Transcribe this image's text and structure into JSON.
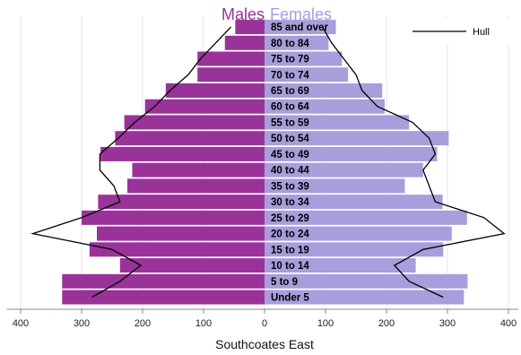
{
  "chart_data": {
    "type": "bar",
    "subtype": "population-pyramid",
    "xlabel": "Southcoates East",
    "xlim": [
      -410,
      400
    ],
    "xticks": [
      -400,
      -300,
      -200,
      -100,
      0,
      100,
      200,
      300,
      400
    ],
    "xtick_labels": [
      "400",
      "300",
      "200",
      "100",
      "0",
      "100",
      "200",
      "300",
      "400"
    ],
    "categories": [
      "Under 5",
      "5 to 9",
      "10 to 14",
      "15 to 19",
      "20 to 24",
      "25 to 29",
      "30 to 34",
      "35 to 39",
      "40 to 44",
      "45 to 49",
      "50 to 54",
      "55 to 59",
      "60 to 64",
      "65 to 69",
      "70 to 74",
      "75 to 79",
      "80 to 84",
      "85 and over"
    ],
    "series": [
      {
        "name": "Males",
        "color": "#993399",
        "values": [
          332,
          332,
          237,
          287,
          275,
          300,
          273,
          225,
          217,
          269,
          245,
          230,
          196,
          162,
          110,
          110,
          65,
          48
        ]
      },
      {
        "name": "Females",
        "color": "#a99ddb",
        "values": [
          327,
          333,
          248,
          293,
          307,
          332,
          292,
          230,
          260,
          283,
          302,
          237,
          197,
          193,
          137,
          127,
          105,
          117
        ]
      }
    ],
    "overlay": {
      "name": "Hull",
      "color": "#000000",
      "male_values": [
        283,
        237,
        203,
        250,
        380,
        300,
        237,
        247,
        270,
        270,
        240,
        213,
        180,
        155,
        125,
        105,
        80,
        55
      ],
      "female_values": [
        293,
        237,
        213,
        260,
        393,
        360,
        280,
        270,
        260,
        280,
        270,
        243,
        185,
        160,
        150,
        130,
        110,
        95
      ]
    },
    "legend": {
      "position": "top-right",
      "entries": [
        "Hull"
      ]
    }
  },
  "titles": {
    "males": "Males",
    "females": "Females"
  }
}
